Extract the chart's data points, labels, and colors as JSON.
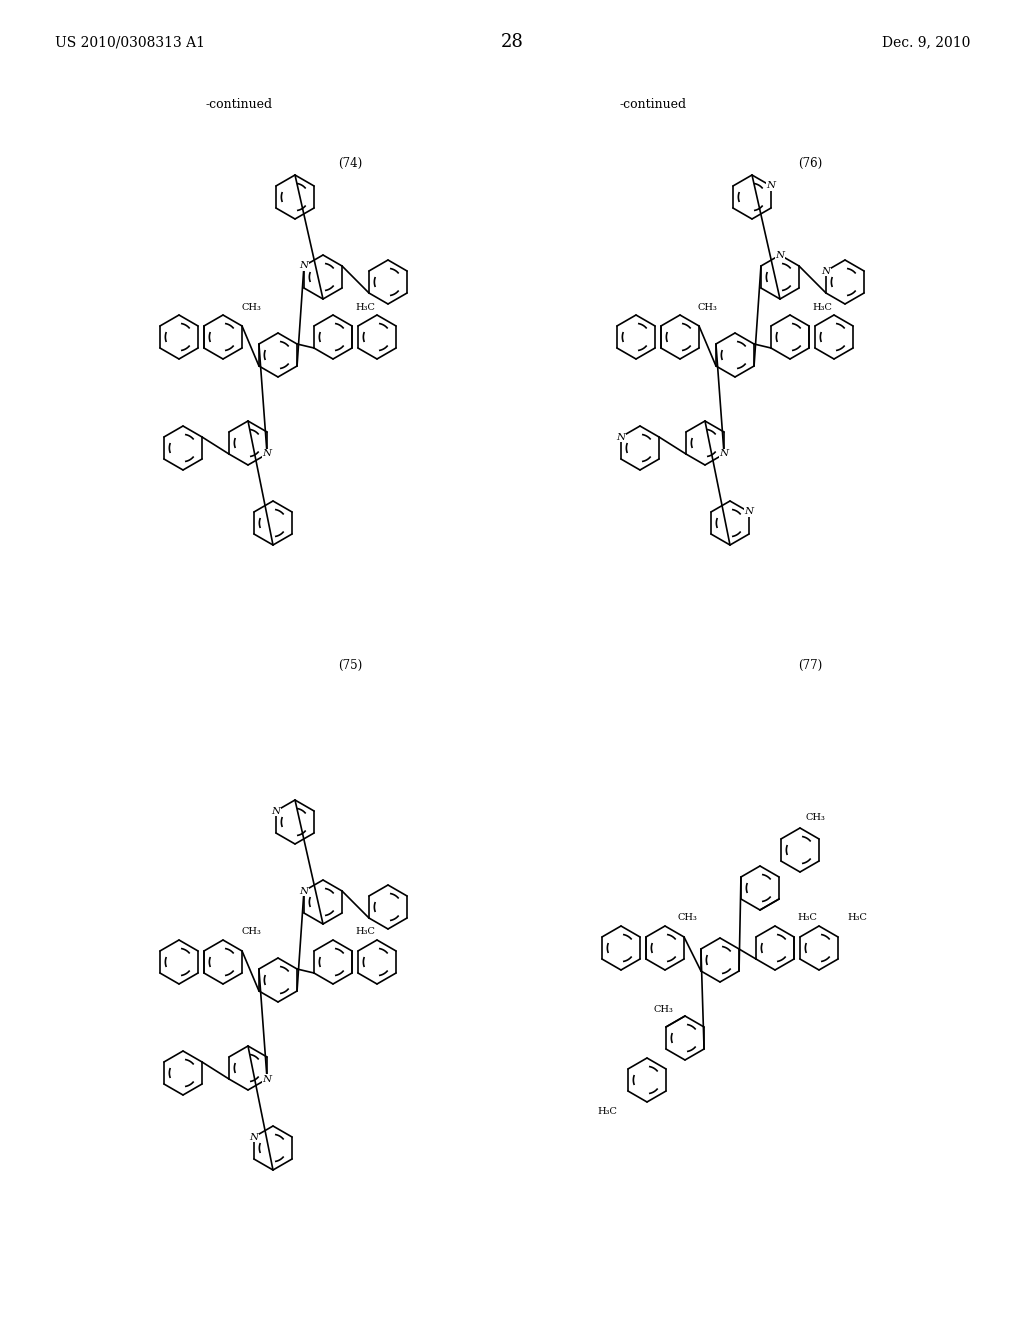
{
  "page_header_left": "US 2010/0308313 A1",
  "page_header_right": "Dec. 9, 2010",
  "page_number": "28",
  "continued_left": "-continued",
  "continued_right": "-continued",
  "label_74": "(74)",
  "label_75": "(75)",
  "label_76": "(76)",
  "label_77": "(77)",
  "bg_color": "#ffffff",
  "text_color": "#000000",
  "line_color": "#000000",
  "line_width": 1.2,
  "font_size_header": 10,
  "font_size_label": 8
}
